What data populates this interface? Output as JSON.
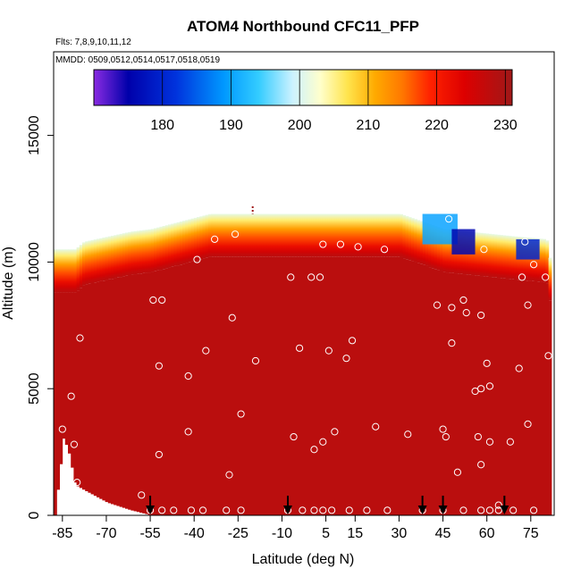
{
  "chart_data": {
    "type": "heatmap",
    "title": "ATOM4 Northbound CFC11_PFP",
    "subtitle_lines": [
      "Flts: 7,8,9,10,11,12",
      "MMDD: 0509,0512,0514,0517,0518,0519"
    ],
    "xlabel": "Latitude (deg N)",
    "ylabel": "Altitude (m)",
    "xlim": [
      -88,
      83
    ],
    "ylim": [
      0,
      18300
    ],
    "x_ticks": [
      -85,
      -70,
      -55,
      -40,
      -25,
      -10,
      5,
      15,
      30,
      45,
      60,
      75
    ],
    "x_tick_labels": [
      "-85",
      "-70",
      "-55",
      "-40",
      "-25",
      "-10",
      "5",
      "15",
      "30",
      "45",
      "60",
      "75"
    ],
    "y_ticks": [
      0,
      5000,
      10000,
      15000
    ],
    "y_tick_labels": [
      "0",
      "5000",
      "10000",
      "15000"
    ],
    "colorbar": {
      "range": [
        170,
        231
      ],
      "ticks": [
        180,
        190,
        200,
        210,
        220,
        230
      ],
      "tick_labels": [
        "180",
        "190",
        "200",
        "210",
        "220",
        "230"
      ],
      "stops": [
        {
          "v": 170,
          "c": "#8a2be2"
        },
        {
          "v": 175,
          "c": "#0000aa"
        },
        {
          "v": 182,
          "c": "#0033dd"
        },
        {
          "v": 189,
          "c": "#0099ff"
        },
        {
          "v": 194,
          "c": "#33ccff"
        },
        {
          "v": 199,
          "c": "#ccf2ff"
        },
        {
          "v": 203,
          "c": "#ffffcc"
        },
        {
          "v": 207,
          "c": "#ffe44d"
        },
        {
          "v": 211,
          "c": "#ffaa00"
        },
        {
          "v": 215,
          "c": "#ff7700"
        },
        {
          "v": 219,
          "c": "#ff2200"
        },
        {
          "v": 224,
          "c": "#dd0000"
        },
        {
          "v": 231,
          "c": "#a01818"
        }
      ]
    },
    "surface_value": 228,
    "top_gradient_profile": [
      [
        0,
        228
      ],
      [
        0.06,
        227
      ],
      [
        0.13,
        225
      ],
      [
        0.25,
        222
      ],
      [
        0.45,
        217
      ],
      [
        0.65,
        212
      ],
      [
        0.85,
        206
      ],
      [
        1.0,
        201
      ]
    ],
    "coverage": [
      {
        "lat": -88,
        "bottom": 0,
        "top": 10500
      },
      {
        "lat": -85,
        "bottom": 3100,
        "top": 10500
      },
      {
        "lat": -83,
        "bottom": 2400,
        "top": 10500
      },
      {
        "lat": -81,
        "bottom": 1200,
        "top": 10500
      },
      {
        "lat": -78,
        "bottom": 1000,
        "top": 10800
      },
      {
        "lat": -70,
        "bottom": 500,
        "top": 11000
      },
      {
        "lat": -62,
        "bottom": 200,
        "top": 11200
      },
      {
        "lat": -55,
        "bottom": 0,
        "top": 11300
      },
      {
        "lat": -35,
        "bottom": 0,
        "top": 11900
      },
      {
        "lat": -20,
        "bottom": 0,
        "top": 11900
      },
      {
        "lat": 30,
        "bottom": 0,
        "top": 11900
      },
      {
        "lat": 45,
        "bottom": 0,
        "top": 11300
      },
      {
        "lat": 70,
        "bottom": 0,
        "top": 11000
      },
      {
        "lat": 80,
        "bottom": 0,
        "top": 10900
      },
      {
        "lat": 82,
        "bottom": 0,
        "top": 9500
      }
    ],
    "blue_patches": [
      {
        "lat_start": 38,
        "lat_end": 50,
        "alt_bottom": 10700,
        "alt_top": 11900,
        "value": 190
      },
      {
        "lat_start": 48,
        "lat_end": 56,
        "alt_bottom": 10300,
        "alt_top": 11300,
        "value": 176
      },
      {
        "lat_start": 70,
        "lat_end": 78,
        "alt_bottom": 10100,
        "alt_top": 10900,
        "value": 180
      }
    ],
    "samples": [
      [
        -85,
        3400
      ],
      [
        -82,
        4700
      ],
      [
        -81,
        2800
      ],
      [
        -80,
        1300
      ],
      [
        -79,
        7000
      ],
      [
        -58,
        800
      ],
      [
        -54,
        8500
      ],
      [
        -52,
        5900
      ],
      [
        -52,
        2400
      ],
      [
        -51,
        8500
      ],
      [
        -42,
        5500
      ],
      [
        -42,
        3300
      ],
      [
        -39,
        10100
      ],
      [
        -36,
        6500
      ],
      [
        -33,
        10900
      ],
      [
        -28,
        1600
      ],
      [
        -27,
        7800
      ],
      [
        -26,
        11100
      ],
      [
        -24,
        4000
      ],
      [
        -19,
        6100
      ],
      [
        -7,
        9400
      ],
      [
        -6,
        3100
      ],
      [
        -4,
        6600
      ],
      [
        0,
        9400
      ],
      [
        1,
        2600
      ],
      [
        3,
        9400
      ],
      [
        4,
        2900
      ],
      [
        4,
        10700
      ],
      [
        6,
        6500
      ],
      [
        8,
        3300
      ],
      [
        10,
        10700
      ],
      [
        12,
        6200
      ],
      [
        14,
        6900
      ],
      [
        16,
        10600
      ],
      [
        22,
        3500
      ],
      [
        25,
        10500
      ],
      [
        33,
        3200
      ],
      [
        43,
        8300
      ],
      [
        45,
        3400
      ],
      [
        46,
        3100
      ],
      [
        47,
        11700
      ],
      [
        48,
        6800
      ],
      [
        48,
        8200
      ],
      [
        50,
        1700
      ],
      [
        52,
        8500
      ],
      [
        53,
        8000
      ],
      [
        56,
        4900
      ],
      [
        57,
        3100
      ],
      [
        58,
        7900
      ],
      [
        58,
        2000
      ],
      [
        58,
        5000
      ],
      [
        59,
        10500
      ],
      [
        60,
        6000
      ],
      [
        61,
        5100
      ],
      [
        61,
        2900
      ],
      [
        64,
        200
      ],
      [
        68,
        2900
      ],
      [
        71,
        5800
      ],
      [
        72,
        9400
      ],
      [
        73,
        10800
      ],
      [
        74,
        3600
      ],
      [
        74,
        8300
      ],
      [
        76,
        9900
      ],
      [
        80,
        9400
      ],
      [
        81,
        6300
      ],
      [
        -55,
        200
      ],
      [
        -51,
        200
      ],
      [
        -47,
        200
      ],
      [
        -41,
        200
      ],
      [
        -37,
        200
      ],
      [
        -29,
        200
      ],
      [
        -24,
        200
      ],
      [
        -8,
        200
      ],
      [
        -3,
        200
      ],
      [
        1,
        200
      ],
      [
        4,
        200
      ],
      [
        7,
        200
      ],
      [
        13,
        200
      ],
      [
        19,
        200
      ],
      [
        26,
        200
      ],
      [
        38,
        200
      ],
      [
        45,
        200
      ],
      [
        52,
        200
      ],
      [
        58,
        200
      ],
      [
        61,
        200
      ],
      [
        64,
        400
      ],
      [
        69,
        200
      ],
      [
        76,
        200
      ]
    ],
    "arrow_lats": [
      -55,
      -8,
      38,
      45,
      66
    ],
    "top_marker_lat": -20,
    "top_marker_alt": 12200,
    "marker_colors": {
      "sample_point": "#ffffff",
      "arrow": "#000000",
      "top_marker": "#a01818"
    }
  }
}
